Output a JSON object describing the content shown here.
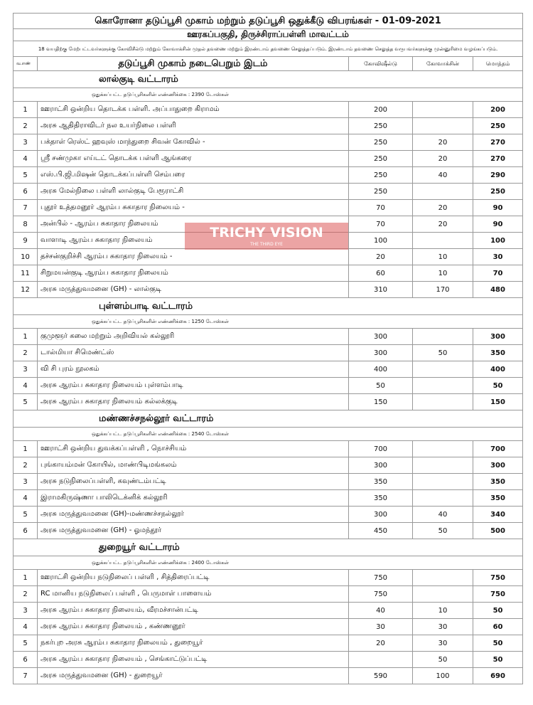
{
  "title": "கொரோனா தடுப்பூசி முகாம் மற்றும் தடுப்பூசி ஒதுக்கீடு விபரங்கள் - 01-09-2021",
  "subtitle": "ஊரகப்பகுதி, திருச்சிராப்பள்ளி மாவட்டம்",
  "note": "18 வயதிற்கு மேற்பட்டவர்களுக்கு கோவிசீல்டு மற்றும் கோவாக்சின் முதல் தவணை மற்றும் இரண்டாம் தவணை செலுத்தப்படும். இரண்டாம் தவணை செலுத்த வருபவர்களுக்கு முன்னுரிமை வழங்கப்படும்.",
  "headers": {
    "sno": "வ.எண்",
    "place": "தடுப்பூசி முகாம் நடைபெறும் இடம்",
    "covishield": "கோவிஷீல்டு",
    "covaxin": "கோவாக்சின்",
    "total": "மொத்தம்"
  },
  "watermark": {
    "text": "TRICHY VISION",
    "tagline": "THE THIRD EYE"
  },
  "sections": [
    {
      "name": "லால்குடி வட்டாரம்",
      "dose": "ஒதுக்கப்பட்ட தடுப்பூசிகளின் எண்ணிக்கை : 2390 டோஸ்கள்",
      "rows": [
        [
          "1",
          "ஊராட்சி ஒன்றிய தொடக்க பள்ளி. அப்பாதுறை கிராமம்",
          "200",
          "",
          "200"
        ],
        [
          "2",
          "அரசு ஆதிதிராவிடர் நல உயர்நிலை பள்ளி",
          "250",
          "",
          "250"
        ],
        [
          "3",
          "பக்தாள் ரெஸ்ட் ஹவுஸ் மாந்துறை சிவன் கோவில் -",
          "250",
          "20",
          "270"
        ],
        [
          "4",
          "ஸ்ரீ சண்முகா எய்டட் தொடக்க பள்ளி ஆங்கரை",
          "250",
          "20",
          "270"
        ],
        [
          "5",
          "எஸ்.பி.ஜி.மிஷன் தொடக்கப்பள்ளி செம்பரை",
          "250",
          "40",
          "290"
        ],
        [
          "6",
          "அரசு மேல்நிலை பள்ளி லால்குடி பேரூராட்சி",
          "250",
          "",
          "250"
        ],
        [
          "7",
          "புதூர் உத்தமனூர் ஆரம்ப சுகாதார நிலையம் -",
          "70",
          "20",
          "90"
        ],
        [
          "8",
          "அன்பில் - ஆரம்ப சுகாதார நிலையம்",
          "70",
          "20",
          "90"
        ],
        [
          "9",
          "வாளாடி ஆரம்ப சுகாதார நிலையம்",
          "100",
          "",
          "100"
        ],
        [
          "10",
          "தச்சன்குறிச்சி ஆரம்ப சுகாதார நிலையம் -",
          "20",
          "10",
          "30"
        ],
        [
          "11",
          "சிறுமயன்குடி ஆரம்ப சுகாதார நிலையம்",
          "60",
          "10",
          "70"
        ],
        [
          "12",
          "அரசு மருத்துவமனை (GH) - லால்குடி",
          "310",
          "170",
          "480"
        ]
      ]
    },
    {
      "name": "புள்ளம்பாடி வட்டாரம்",
      "dose": "ஒதுக்கப்பட்ட தடுப்பூசிகளின் எண்ணிக்கை : 1250 டோஸ்கள்",
      "rows": [
        [
          "1",
          "குமுளூர் கலை மற்றும் அறிவியல் கல்லூரி",
          "300",
          "",
          "300"
        ],
        [
          "2",
          "டால்மியா சிமெண்ட்ஸ்",
          "300",
          "50",
          "350"
        ],
        [
          "3",
          "வி சி புரம் நூலகம்",
          "400",
          "",
          "400"
        ],
        [
          "4",
          "அரசு ஆரம்ப சுகாதார நிலையம் புள்ளம்பாடி",
          "50",
          "",
          "50"
        ],
        [
          "5",
          "அரசு ஆரம்ப சுகாதார நிலையம் கல்லக்குடி",
          "150",
          "",
          "150"
        ]
      ]
    },
    {
      "name": "மண்ணச்சநல்லூர் வட்டாரம்",
      "dose": "ஒதுக்கப்பட்ட தடுப்பூசிகளின் எண்ணிக்கை : 2540 டோஸ்கள்",
      "rows": [
        [
          "1",
          "ஊராட்சி ஒன்றிய துவக்கப்பள்ளி , நொச்சியம்",
          "700",
          "",
          "700"
        ],
        [
          "2",
          "புங்காயம்மன் கோயில், மாண்பிடிமங்கலம்",
          "300",
          "",
          "300"
        ],
        [
          "3",
          "அரசு நடுநிலைப்பள்ளி, கவுண்டம்பட்டி",
          "350",
          "",
          "350"
        ],
        [
          "4",
          "இராமகிருஷ்ணா பாலிடெக்னிக் கல்லூரி",
          "350",
          "",
          "350"
        ],
        [
          "5",
          "அரசு மருத்துவமனை (GH)-மண்ணச்சநல்லூர்",
          "300",
          "40",
          "340"
        ],
        [
          "6",
          "அரசு மருத்துவமனை (GH) - ஓமந்தூர்",
          "450",
          "50",
          "500"
        ]
      ]
    },
    {
      "name": "துறையூர் வட்டாரம்",
      "dose": "ஒதுக்கப்பட்ட தடுப்பூசிகளின் எண்ணிக்கை : 2400 டோஸ்கள்",
      "rows": [
        [
          "1",
          "ஊராட்சி ஒன்றிய நடுநிலைப் பள்ளி , சித்திரைப்பட்டி",
          "750",
          "",
          "750"
        ],
        [
          "2",
          "RC மானிய நடுநிலைப் பள்ளி , பெருமாள் பாளையம்",
          "750",
          "",
          "750"
        ],
        [
          "3",
          "அரசு ஆரம்ப சுகாதார நிலையம், வீரமச்சான்பட்டி",
          "40",
          "10",
          "50"
        ],
        [
          "4",
          "அரசு ஆரம்ப சுகாதார நிலையம் , கண்ணனூர்",
          "30",
          "30",
          "60"
        ],
        [
          "5",
          "நகர்புற அரசு ஆரம்ப சுகாதார நிலையம் , துறையூர்",
          "20",
          "30",
          "50"
        ],
        [
          "6",
          "அரசு ஆரம்ப சுகாதார நிலையம் , செங்காட்டுப்பட்டி",
          "",
          "50",
          "50"
        ],
        [
          "7",
          "அரசு மருத்துவமனை (GH) - துறையூர்",
          "590",
          "100",
          "690"
        ]
      ]
    }
  ]
}
